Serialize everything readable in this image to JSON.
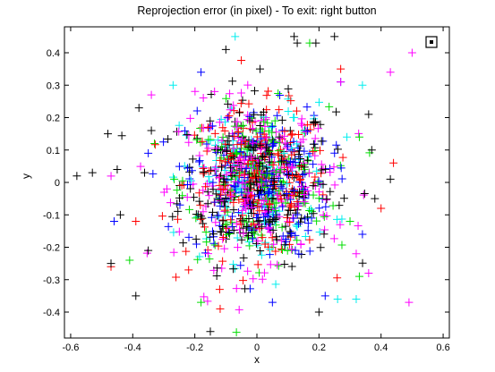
{
  "chart_data": {
    "type": "scatter",
    "title": "Reprojection error (in pixel) - To exit: right button",
    "xlabel": "x",
    "ylabel": "y",
    "xlim": [
      -0.62,
      0.62
    ],
    "ylim": [
      -0.48,
      0.48
    ],
    "xticks": [
      "-0.6",
      "-0.4",
      "-0.2",
      "0",
      "0.2",
      "0.4",
      "0.6"
    ],
    "xtick_values": [
      -0.6,
      -0.4,
      -0.2,
      0,
      0.2,
      0.4,
      0.6
    ],
    "yticks": [
      "0.4",
      "0.3",
      "0.2",
      "0.1",
      "0",
      "-0.1",
      "-0.2",
      "-0.3",
      "-0.4"
    ],
    "ytick_values": [
      0.4,
      0.3,
      0.2,
      0.1,
      0,
      -0.1,
      -0.2,
      -0.3,
      -0.4
    ],
    "grid": false,
    "legend": null,
    "marker": "+",
    "series": [
      {
        "color": "#000000",
        "count": 260,
        "spread": 0.125,
        "outliers": [
          [
            -0.58,
            0.02
          ],
          [
            -0.53,
            0.03
          ],
          [
            -0.48,
            0.15
          ],
          [
            -0.45,
            0.04
          ],
          [
            -0.38,
            0.23
          ],
          [
            -0.39,
            -0.35
          ],
          [
            -0.47,
            -0.25
          ],
          [
            -0.44,
            -0.1
          ],
          [
            -0.34,
            0.16
          ],
          [
            -0.35,
            -0.21
          ],
          [
            -0.15,
            -0.46
          ],
          [
            0.13,
            0.43
          ],
          [
            0.25,
            0.45
          ],
          [
            0.37,
            0.1
          ],
          [
            0.43,
            0.01
          ],
          [
            0.36,
            0.21
          ],
          [
            0.38,
            -0.05
          ],
          [
            0.19,
            0.43
          ],
          [
            -0.1,
            0.41
          ],
          [
            0.12,
            0.45
          ],
          [
            0.2,
            -0.4
          ],
          [
            0.01,
            0.35
          ]
        ]
      },
      {
        "color": "#ff0000",
        "count": 210,
        "spread": 0.115,
        "outliers": [
          [
            -0.47,
            -0.26
          ],
          [
            -0.39,
            -0.12
          ],
          [
            0.44,
            0.06
          ],
          [
            0.4,
            -0.08
          ],
          [
            0.27,
            0.35
          ],
          [
            -0.22,
            -0.27
          ],
          [
            -0.12,
            -0.33
          ]
        ]
      },
      {
        "color": "#00dd00",
        "count": 180,
        "spread": 0.115,
        "outliers": [
          [
            -0.41,
            -0.24
          ],
          [
            0.33,
            -0.29
          ],
          [
            0.33,
            0.14
          ],
          [
            -0.33,
            0.12
          ],
          [
            0.17,
            0.43
          ],
          [
            -0.18,
            -0.37
          ],
          [
            0.3,
            -0.12
          ]
        ]
      },
      {
        "color": "#0000ff",
        "count": 200,
        "spread": 0.115,
        "outliers": [
          [
            -0.46,
            -0.12
          ],
          [
            -0.35,
            0.09
          ],
          [
            0.34,
            -0.16
          ],
          [
            0.27,
            0.31
          ],
          [
            -0.18,
            0.34
          ],
          [
            0.05,
            -0.37
          ],
          [
            0.22,
            -0.35
          ]
        ]
      },
      {
        "color": "#00eeee",
        "count": 120,
        "spread": 0.12,
        "outliers": [
          [
            0.32,
            -0.36
          ],
          [
            0.26,
            -0.36
          ],
          [
            -0.27,
            0.3
          ],
          [
            0.29,
            0.14
          ],
          [
            -0.07,
            0.45
          ],
          [
            0.34,
            0.3
          ]
        ]
      },
      {
        "color": "#ff00ff",
        "count": 230,
        "spread": 0.125,
        "outliers": [
          [
            0.5,
            0.4
          ],
          [
            0.43,
            0.34
          ],
          [
            0.49,
            -0.37
          ],
          [
            0.36,
            -0.28
          ],
          [
            0.2,
            -0.48
          ],
          [
            0.3,
            -0.48
          ],
          [
            0.27,
            0.31
          ],
          [
            -0.34,
            0.27
          ],
          [
            -0.29,
            -0.02
          ],
          [
            0.32,
            -0.22
          ]
        ]
      }
    ]
  },
  "figure": {
    "toolbar_icon": "box-dot-icon"
  }
}
